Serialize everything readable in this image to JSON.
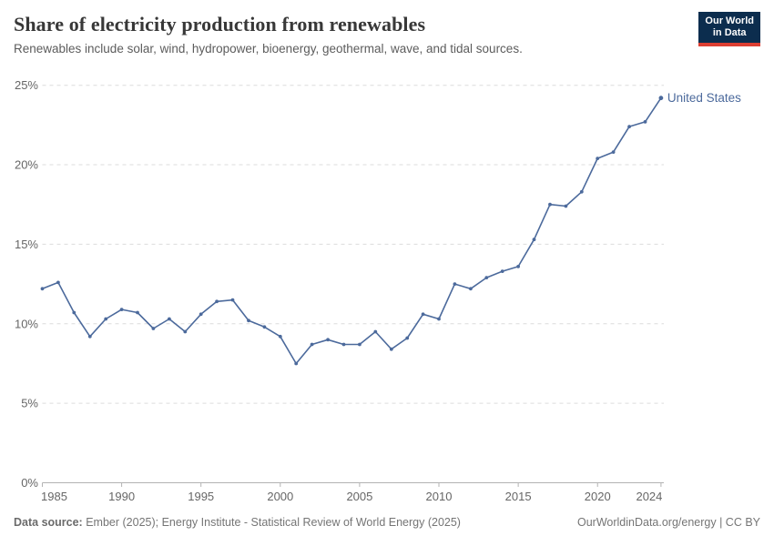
{
  "header": {
    "title": "Share of electricity production from renewables",
    "subtitle": "Renewables include solar, wind, hydropower, bioenergy, geothermal, wave, and tidal sources.",
    "logo": {
      "line1": "Our World",
      "line2": "in Data",
      "bg_color": "#0c2d4e",
      "accent_color": "#dc3e32"
    }
  },
  "chart_data": {
    "type": "line",
    "title": "Share of electricity production from renewables",
    "xlabel": "",
    "ylabel": "",
    "xlim": [
      1985,
      2024
    ],
    "ylim": [
      0,
      25
    ],
    "xticks": [
      1985,
      1990,
      1995,
      2000,
      2005,
      2010,
      2015,
      2020,
      2024
    ],
    "yticks": [
      0,
      5,
      10,
      15,
      20,
      25
    ],
    "ytick_suffix": "%",
    "grid": "horizontal-dashed",
    "legend_position": "line-end-label",
    "x": [
      1985,
      1986,
      1987,
      1988,
      1989,
      1990,
      1991,
      1992,
      1993,
      1994,
      1995,
      1996,
      1997,
      1998,
      1999,
      2000,
      2001,
      2002,
      2003,
      2004,
      2005,
      2006,
      2007,
      2008,
      2009,
      2010,
      2011,
      2012,
      2013,
      2014,
      2015,
      2016,
      2017,
      2018,
      2019,
      2020,
      2021,
      2022,
      2023,
      2024
    ],
    "series": [
      {
        "name": "United States",
        "color": "#4C6A9C",
        "values": [
          12.2,
          12.6,
          10.7,
          9.2,
          10.3,
          10.9,
          10.7,
          9.7,
          10.3,
          9.5,
          10.6,
          11.4,
          11.5,
          10.2,
          9.8,
          9.2,
          7.5,
          8.7,
          9.0,
          8.7,
          8.7,
          9.5,
          8.4,
          9.1,
          10.6,
          10.3,
          12.5,
          12.2,
          12.9,
          13.3,
          13.6,
          15.3,
          17.5,
          17.4,
          18.3,
          20.4,
          20.8,
          22.4,
          22.7,
          24.2
        ]
      }
    ],
    "axis_colors": {
      "grid": "#dcdcdc",
      "axis_line": "#b3b3b3",
      "tick_text": "#666666"
    }
  },
  "footer": {
    "datasource_label": "Data source:",
    "datasource_text": " Ember (2025); Energy Institute - Statistical Review of World Energy (2025)",
    "credit": "OurWorldinData.org/energy | CC BY"
  }
}
